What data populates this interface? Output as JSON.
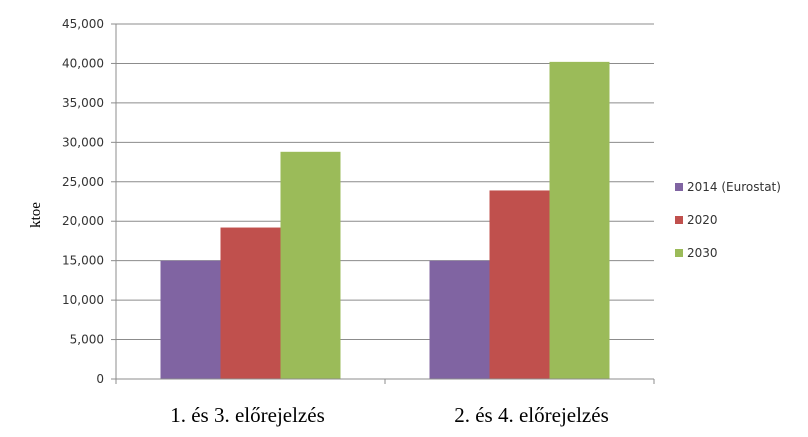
{
  "chart_data": {
    "type": "bar",
    "categories": [
      "1. és 3. előrejelzés",
      "2. és 4. előrejelzés"
    ],
    "series": [
      {
        "name": "2014 (Eurostat)",
        "values": [
          15000,
          15000
        ],
        "color": "#8064a2"
      },
      {
        "name": "2020",
        "values": [
          19200,
          23900
        ],
        "color": "#c0504d"
      },
      {
        "name": "2030",
        "values": [
          28800,
          40200
        ],
        "color": "#9bbb59"
      }
    ],
    "ylabel": "ktoe",
    "xlabel": "",
    "ylim": [
      0,
      45000
    ],
    "yticks": [
      "0",
      "5,000",
      "10,000",
      "15,000",
      "20,000",
      "25,000",
      "30,000",
      "35,000",
      "40,000",
      "45,000"
    ],
    "grid": true,
    "legend": "right"
  }
}
